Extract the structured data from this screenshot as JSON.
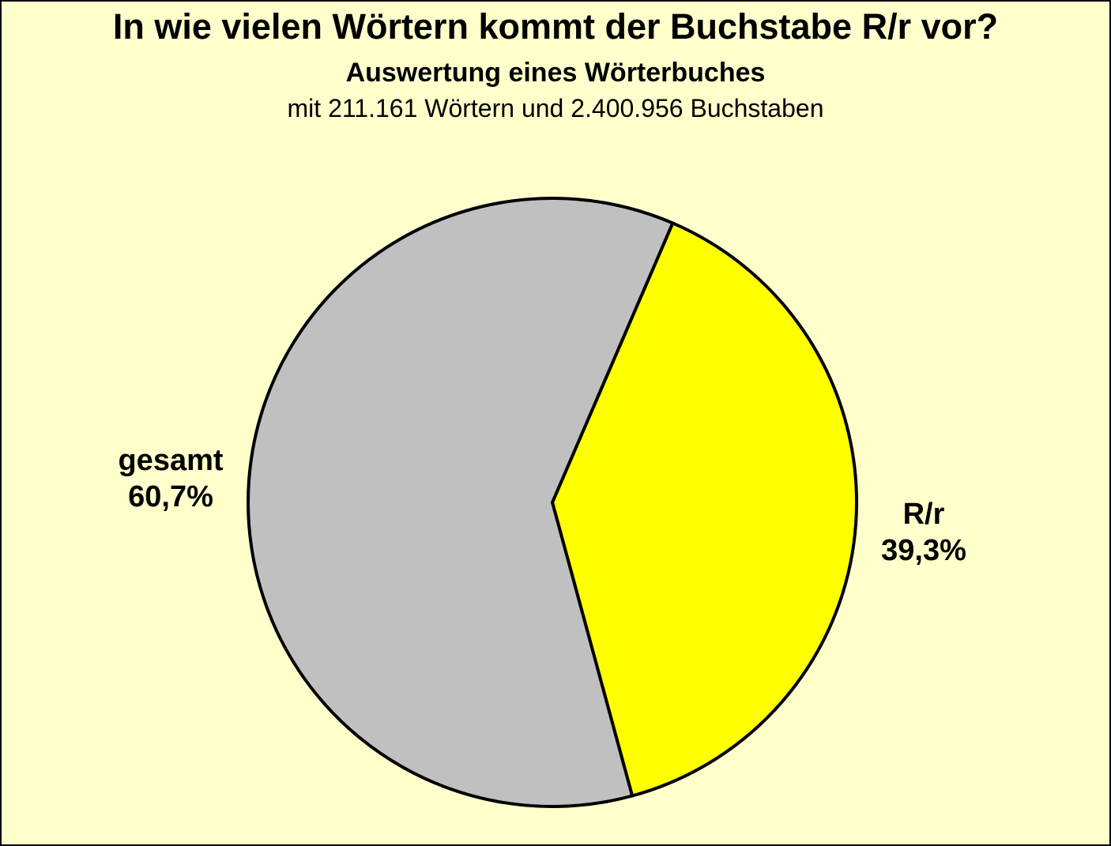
{
  "header": {
    "title": "In wie vielen Wörtern kommt der Buchstabe R/r vor?",
    "subtitle": "Auswertung eines Wörterbuches",
    "note": "mit 211.161 Wörtern und 2.400.956 Buchstaben"
  },
  "chart_data": {
    "type": "pie",
    "title": "In wie vielen Wörtern kommt der Buchstabe R/r vor?",
    "subtitle": "Auswertung eines Wörterbuches",
    "note": "mit 211.161 Wörtern und 2.400.956 Buchstaben",
    "total_words": "211.161",
    "total_letters": "2.400.956",
    "slices": [
      {
        "id": "rr",
        "label": "R/r",
        "value_pct": 39.3,
        "display_value": "39,3%",
        "color": "#FFFF00"
      },
      {
        "id": "gesamt",
        "label": "gesamt",
        "value_pct": 60.7,
        "display_value": "60,7%",
        "color": "#C0C0C0"
      }
    ],
    "rotation_deg": 23.3,
    "stroke_color": "#000000",
    "background_color": "#FFFFCC",
    "legend_position": "outside-labels",
    "grid": false
  }
}
